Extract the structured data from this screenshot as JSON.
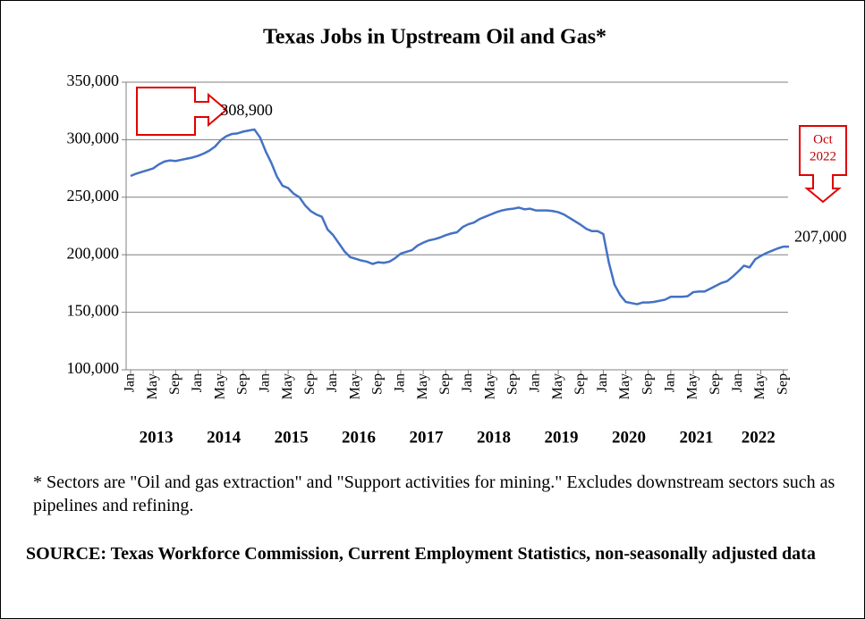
{
  "chart_data": {
    "type": "line",
    "title": "Texas Jobs in Upstream Oil and Gas*",
    "categories": [
      "Jan",
      null,
      null,
      null,
      "May",
      null,
      null,
      null,
      "Sep",
      null,
      null,
      null,
      "Jan",
      null,
      null,
      null,
      "May",
      null,
      null,
      null,
      "Sep",
      null,
      null,
      null,
      "Jan",
      null,
      null,
      null,
      "May",
      null,
      null,
      null,
      "Sep",
      null,
      null,
      null,
      "Jan",
      null,
      null,
      null,
      "May",
      null,
      null,
      null,
      "Sep",
      null,
      null,
      null,
      "Jan",
      null,
      null,
      null,
      "May",
      null,
      null,
      null,
      "Sep",
      null,
      null,
      null,
      "Jan",
      null,
      null,
      null,
      "May",
      null,
      null,
      null,
      "Sep",
      null,
      null,
      null,
      "Jan",
      null,
      null,
      null,
      "May",
      null,
      null,
      null,
      "Sep",
      null,
      null,
      null,
      "Jan",
      null,
      null,
      null,
      "May",
      null,
      null,
      null,
      "Sep",
      null,
      null,
      null,
      "Jan",
      null,
      null,
      null,
      "May",
      null,
      null,
      null,
      "Sep",
      null,
      null,
      null,
      "Jan",
      null,
      null,
      null,
      "May",
      null,
      null,
      null,
      "Sep",
      null
    ],
    "years": [
      "2013",
      "2014",
      "2015",
      "2016",
      "2017",
      "2018",
      "2019",
      "2020",
      "2021",
      "2022"
    ],
    "series": [
      {
        "name": "Texas Jobs in Upstream Oil and Gas",
        "color": "#4472c4",
        "values": [
          268500,
          270500,
          272000,
          273500,
          275000,
          278500,
          281000,
          282000,
          281500,
          282500,
          283500,
          284500,
          286000,
          288000,
          290500,
          294000,
          299500,
          303000,
          305000,
          305500,
          307000,
          308000,
          308900,
          302000,
          290000,
          280000,
          268000,
          260000,
          258000,
          253000,
          250000,
          243000,
          238000,
          235000,
          233000,
          222000,
          217000,
          210000,
          203000,
          198000,
          196500,
          195000,
          194000,
          192000,
          193500,
          193000,
          194000,
          197000,
          201000,
          202500,
          204000,
          208000,
          210500,
          212500,
          213500,
          215000,
          217000,
          218500,
          219500,
          224000,
          226500,
          228000,
          231000,
          233000,
          235000,
          237000,
          238500,
          239500,
          240000,
          241000,
          239500,
          240000,
          238500,
          238500,
          238500,
          238000,
          237000,
          235000,
          232000,
          229000,
          226000,
          222500,
          220500,
          220500,
          218000,
          193000,
          174000,
          165000,
          159000,
          158000,
          157000,
          158500,
          158500,
          159000,
          160000,
          161000,
          163500,
          163500,
          163500,
          164000,
          167500,
          168000,
          168000,
          170500,
          173000,
          175500,
          177000,
          181000,
          185500,
          190500,
          189000,
          196000,
          199000,
          201500,
          203500,
          205500,
          207000,
          207000
        ],
        "value_labels": [
          null,
          null,
          null,
          null,
          null,
          null,
          null,
          null,
          null,
          null,
          null,
          null,
          null,
          null,
          null,
          null,
          null,
          null,
          null,
          null,
          null,
          null,
          "308,900",
          null,
          null,
          null,
          null,
          null,
          null,
          null,
          null,
          null,
          null,
          null,
          null,
          null,
          null,
          null,
          null,
          null,
          null,
          null,
          null,
          null,
          null,
          null,
          null,
          null,
          null,
          null,
          null,
          null,
          null,
          null,
          null,
          null,
          null,
          null,
          null,
          null,
          null,
          null,
          null,
          null,
          null,
          null,
          null,
          null,
          null,
          null,
          null,
          null,
          null,
          null,
          null,
          null,
          null,
          null,
          null,
          null,
          null,
          null,
          null,
          null,
          null,
          null,
          null,
          null,
          null,
          null,
          null,
          null,
          null,
          null,
          null,
          null,
          null,
          null,
          null,
          null,
          null,
          null,
          null,
          null,
          null,
          null,
          null,
          null,
          null,
          null,
          null,
          null,
          null,
          null,
          null,
          null,
          null,
          "207,000"
        ]
      }
    ],
    "annotation_lines": [
      "Oct",
      "2022"
    ],
    "ylim": [
      100000,
      350000
    ],
    "yticks": [
      {
        "value": 100000,
        "label": "100,000"
      },
      {
        "value": 150000,
        "label": "150,000"
      },
      {
        "value": 200000,
        "label": "200,000"
      },
      {
        "value": 250000,
        "label": "250,000"
      },
      {
        "value": 300000,
        "label": "300,000"
      },
      {
        "value": 350000,
        "label": "350,000"
      }
    ],
    "grid": true
  },
  "footnote": "* Sectors are \"Oil and gas extraction\" and \"Support activities for mining.\"  Excludes downstream sectors such as pipelines and refining.",
  "source": "SOURCE: Texas Workforce Commission, Current Employment Statistics, non-seasonally adjusted data"
}
